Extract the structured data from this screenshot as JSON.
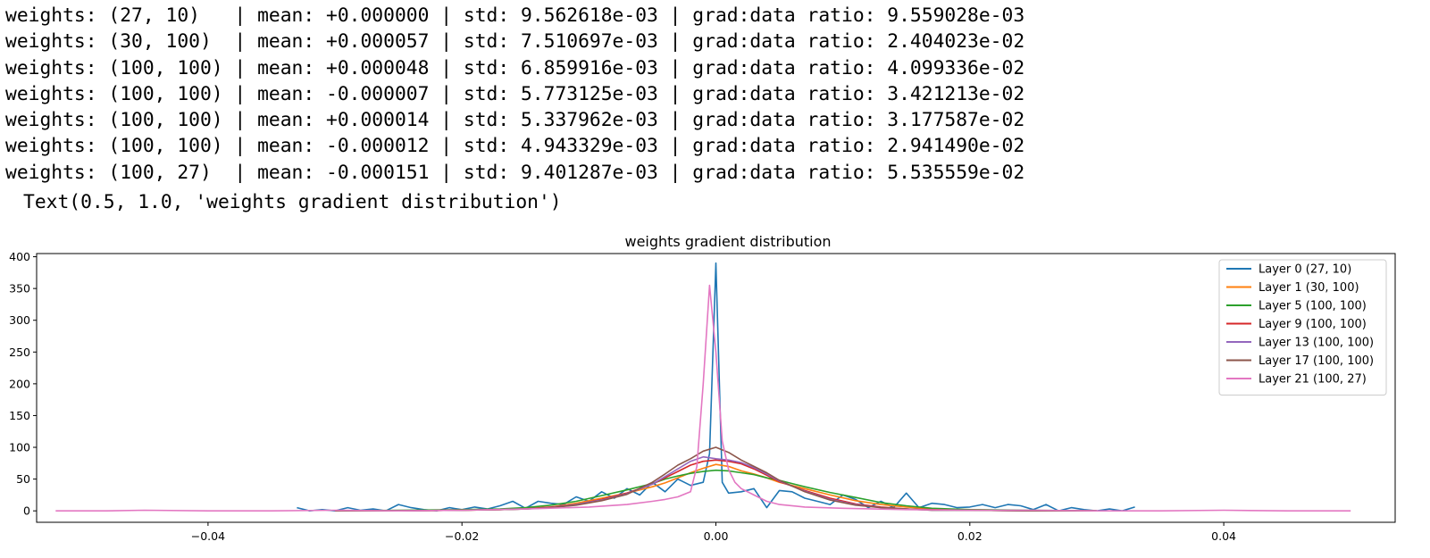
{
  "output_lines": [
    "weights: (27, 10)   | mean: +0.000000 | std: 9.562618e-03 | grad:data ratio: 9.559028e-03",
    "weights: (30, 100)  | mean: +0.000057 | std: 7.510697e-03 | grad:data ratio: 2.404023e-02",
    "weights: (100, 100) | mean: +0.000048 | std: 6.859916e-03 | grad:data ratio: 4.099336e-02",
    "weights: (100, 100) | mean: -0.000007 | std: 5.773125e-03 | grad:data ratio: 3.421213e-02",
    "weights: (100, 100) | mean: +0.000014 | std: 5.337962e-03 | grad:data ratio: 3.177587e-02",
    "weights: (100, 100) | mean: -0.000012 | std: 4.943329e-03 | grad:data ratio: 2.941490e-02",
    "weights: (100, 27)  | mean: -0.000151 | std: 9.401287e-03 | grad:data ratio: 5.535559e-02"
  ],
  "repr_text": "Text(0.5, 1.0, 'weights gradient distribution')",
  "chart_data": {
    "type": "line",
    "title": "weights gradient distribution",
    "xlim": [
      -0.0535,
      0.0535
    ],
    "ylim": [
      -18,
      405
    ],
    "xticks": [
      -0.04,
      -0.02,
      0.0,
      0.02,
      0.04
    ],
    "xtick_labels": [
      "−0.04",
      "−0.02",
      "0.00",
      "0.02",
      "0.04"
    ],
    "yticks": [
      0,
      50,
      100,
      150,
      200,
      250,
      300,
      350,
      400
    ],
    "ytick_labels": [
      "0",
      "50",
      "100",
      "150",
      "200",
      "250",
      "300",
      "350",
      "400"
    ],
    "legend_position": "top-right",
    "grid": false,
    "series": [
      {
        "name": "Layer 0 (27, 10)",
        "color": "#1f77b4",
        "x": [
          -0.033,
          -0.032,
          -0.031,
          -0.03,
          -0.029,
          -0.028,
          -0.027,
          -0.026,
          -0.025,
          -0.024,
          -0.023,
          -0.022,
          -0.021,
          -0.02,
          -0.019,
          -0.018,
          -0.017,
          -0.016,
          -0.015,
          -0.014,
          -0.013,
          -0.012,
          -0.011,
          -0.01,
          -0.009,
          -0.008,
          -0.007,
          -0.006,
          -0.005,
          -0.004,
          -0.003,
          -0.002,
          -0.001,
          -0.0005,
          0.0,
          0.0005,
          0.001,
          0.002,
          0.003,
          0.004,
          0.005,
          0.006,
          0.007,
          0.008,
          0.009,
          0.01,
          0.011,
          0.012,
          0.013,
          0.014,
          0.015,
          0.016,
          0.017,
          0.018,
          0.019,
          0.02,
          0.021,
          0.022,
          0.023,
          0.024,
          0.025,
          0.026,
          0.027,
          0.028,
          0.029,
          0.03,
          0.031,
          0.032,
          0.033
        ],
        "y": [
          5,
          0,
          2,
          0,
          5,
          1,
          3,
          0,
          10,
          5,
          2,
          0,
          5,
          2,
          6,
          3,
          8,
          15,
          4,
          15,
          12,
          10,
          22,
          15,
          30,
          20,
          35,
          25,
          45,
          30,
          50,
          40,
          45,
          90,
          390,
          45,
          28,
          30,
          35,
          5,
          32,
          30,
          20,
          15,
          10,
          25,
          18,
          5,
          15,
          5,
          28,
          5,
          12,
          10,
          5,
          6,
          10,
          5,
          10,
          8,
          2,
          10,
          0,
          5,
          2,
          0,
          3,
          0,
          6
        ]
      },
      {
        "name": "Layer 1 (30, 100)",
        "color": "#ff7f0e",
        "x": [
          -0.03,
          -0.025,
          -0.02,
          -0.017,
          -0.015,
          -0.013,
          -0.011,
          -0.009,
          -0.007,
          -0.005,
          -0.004,
          -0.003,
          -0.002,
          -0.001,
          0.0,
          0.001,
          0.002,
          0.003,
          0.004,
          0.005,
          0.007,
          0.009,
          0.011,
          0.013,
          0.015,
          0.017,
          0.02,
          0.025,
          0.03
        ],
        "y": [
          0,
          0,
          1,
          2,
          4,
          6,
          12,
          20,
          28,
          38,
          44,
          52,
          60,
          67,
          73,
          70,
          63,
          58,
          52,
          45,
          35,
          25,
          16,
          10,
          6,
          3,
          2,
          0,
          0
        ]
      },
      {
        "name": "Layer 5 (100, 100)",
        "color": "#2ca02c",
        "x": [
          -0.03,
          -0.025,
          -0.02,
          -0.017,
          -0.015,
          -0.013,
          -0.011,
          -0.009,
          -0.007,
          -0.005,
          -0.004,
          -0.003,
          -0.002,
          -0.001,
          0.0,
          0.001,
          0.002,
          0.003,
          0.004,
          0.005,
          0.007,
          0.009,
          0.011,
          0.013,
          0.015,
          0.017,
          0.02,
          0.025,
          0.03
        ],
        "y": [
          0,
          1,
          2,
          3,
          5,
          9,
          15,
          24,
          33,
          43,
          50,
          55,
          59,
          62,
          64,
          63,
          60,
          57,
          52,
          48,
          38,
          29,
          21,
          13,
          8,
          4,
          2,
          1,
          0
        ]
      },
      {
        "name": "Layer 9 (100, 100)",
        "color": "#d62728",
        "x": [
          -0.03,
          -0.025,
          -0.02,
          -0.017,
          -0.015,
          -0.013,
          -0.011,
          -0.009,
          -0.007,
          -0.005,
          -0.004,
          -0.003,
          -0.002,
          -0.001,
          0.0,
          0.001,
          0.002,
          0.003,
          0.004,
          0.005,
          0.007,
          0.009,
          0.011,
          0.013,
          0.015,
          0.017,
          0.02,
          0.025,
          0.03
        ],
        "y": [
          0,
          0,
          1,
          2,
          3,
          6,
          10,
          18,
          28,
          42,
          52,
          62,
          72,
          78,
          80,
          78,
          74,
          66,
          56,
          46,
          32,
          20,
          11,
          6,
          3,
          2,
          1,
          0,
          0
        ]
      },
      {
        "name": "Layer 13 (100, 100)",
        "color": "#9467bd",
        "x": [
          -0.03,
          -0.025,
          -0.02,
          -0.017,
          -0.015,
          -0.013,
          -0.011,
          -0.009,
          -0.007,
          -0.005,
          -0.004,
          -0.003,
          -0.002,
          -0.001,
          0.0,
          0.001,
          0.002,
          0.003,
          0.004,
          0.005,
          0.007,
          0.009,
          0.011,
          0.013,
          0.015,
          0.017,
          0.02,
          0.025,
          0.03
        ],
        "y": [
          0,
          0,
          1,
          2,
          3,
          5,
          10,
          17,
          27,
          42,
          54,
          66,
          78,
          85,
          82,
          80,
          76,
          68,
          58,
          47,
          31,
          18,
          10,
          5,
          3,
          1,
          1,
          0,
          0
        ]
      },
      {
        "name": "Layer 17 (100, 100)",
        "color": "#8c564b",
        "x": [
          -0.03,
          -0.025,
          -0.02,
          -0.017,
          -0.015,
          -0.013,
          -0.011,
          -0.009,
          -0.007,
          -0.005,
          -0.004,
          -0.003,
          -0.002,
          -0.001,
          0.0,
          0.001,
          0.002,
          0.003,
          0.004,
          0.005,
          0.007,
          0.009,
          0.011,
          0.013,
          0.015,
          0.017,
          0.02,
          0.025,
          0.03
        ],
        "y": [
          0,
          0,
          1,
          2,
          3,
          5,
          9,
          16,
          26,
          45,
          58,
          72,
          82,
          94,
          100,
          92,
          80,
          70,
          60,
          48,
          30,
          17,
          9,
          5,
          3,
          1,
          1,
          0,
          0
        ]
      },
      {
        "name": "Layer 21 (100, 27)",
        "color": "#e377c2",
        "x": [
          -0.052,
          -0.048,
          -0.045,
          -0.04,
          -0.035,
          -0.03,
          -0.025,
          -0.02,
          -0.015,
          -0.01,
          -0.007,
          -0.005,
          -0.004,
          -0.003,
          -0.002,
          -0.0015,
          -0.001,
          -0.0005,
          0.0,
          0.0005,
          0.001,
          0.0015,
          0.002,
          0.003,
          0.004,
          0.005,
          0.007,
          0.01,
          0.015,
          0.02,
          0.025,
          0.03,
          0.035,
          0.04,
          0.045,
          0.048,
          0.05
        ],
        "y": [
          0,
          0,
          1,
          0,
          0,
          1,
          0,
          1,
          3,
          6,
          10,
          15,
          18,
          22,
          30,
          70,
          200,
          355,
          250,
          110,
          65,
          45,
          35,
          25,
          15,
          10,
          6,
          4,
          2,
          1,
          1,
          0,
          0,
          1,
          0,
          0,
          0
        ]
      }
    ]
  }
}
